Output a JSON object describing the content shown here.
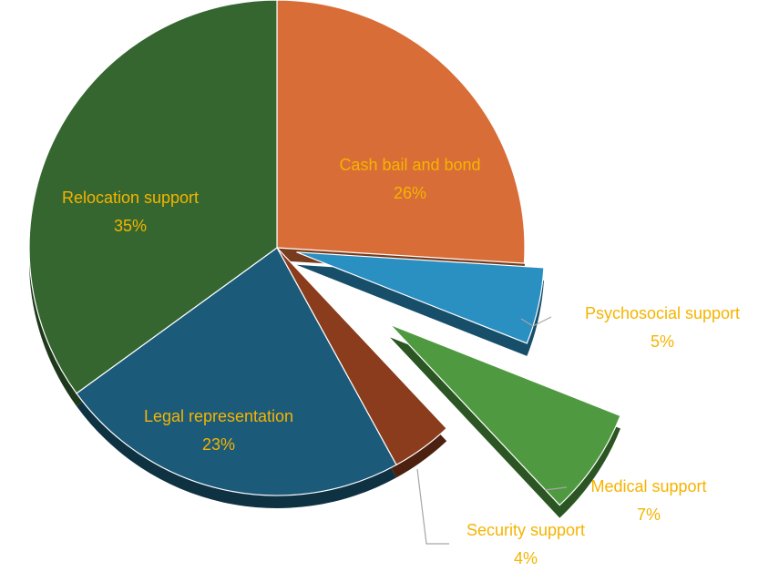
{
  "chart_data": {
    "type": "pie",
    "title": "",
    "series": [
      {
        "name": "",
        "values": [
          26,
          5,
          7,
          4,
          23,
          35
        ]
      }
    ],
    "slices": [
      {
        "label": "Cash bail and bond",
        "percent": "26%",
        "value": 26,
        "color": "#d96d37",
        "exploded": false
      },
      {
        "label": "Psychosocial support",
        "percent": "5%",
        "value": 5,
        "color": "#2a8fc1",
        "exploded": true
      },
      {
        "label": "Medical support",
        "percent": "7%",
        "value": 7,
        "color": "#4f9a40",
        "exploded": true
      },
      {
        "label": "Security support",
        "percent": "4%",
        "value": 4,
        "color": "#8a3c1d",
        "exploded": false
      },
      {
        "label": "Legal representation",
        "percent": "23%",
        "value": 23,
        "color": "#1c5a7a",
        "exploded": false
      },
      {
        "label": "Relocation support",
        "percent": "35%",
        "value": 35,
        "color": "#356630",
        "exploded": false
      }
    ],
    "label_color": "#f5b400",
    "legend": "none"
  }
}
